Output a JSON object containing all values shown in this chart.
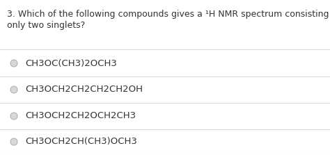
{
  "title_part1": "3. Which of the following compounds gives a ",
  "title_sup": "¹",
  "title_part2": "H NMR spectrum consisting of",
  "title_line2": "only two singlets?",
  "options": [
    "CH3OC(CH3)2OCH3",
    "CH3OCH2CH2CH2CH2OH",
    "CH3OCH2CH2OCH2CH3",
    "CH3OCH2CH(CH3)OCH3"
  ],
  "background_color": "#ffffff",
  "text_color": "#333333",
  "circle_edge_color": "#b0b0b0",
  "circle_fill_color": "#d8d8d8",
  "divider_color": "#dddddd",
  "title_fontsize": 9.0,
  "option_fontsize": 9.5,
  "figwidth": 4.74,
  "figheight": 2.23,
  "dpi": 100
}
